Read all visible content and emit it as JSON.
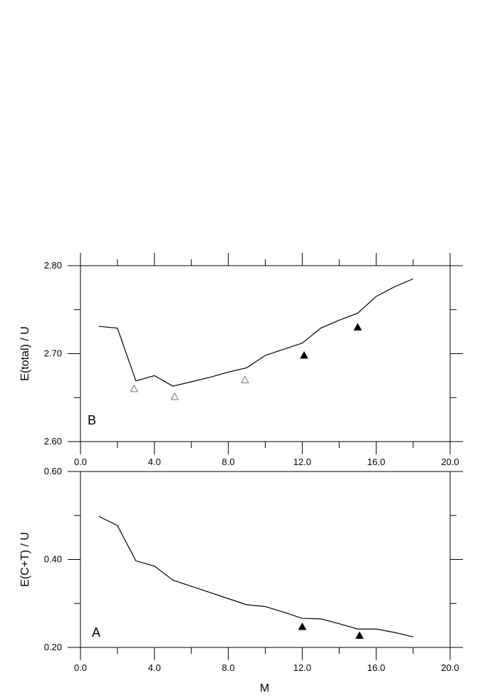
{
  "chart_data": [
    {
      "type": "line",
      "panel_label": "B",
      "ylabel": "E(total) / U",
      "xlabel": "",
      "xlim": [
        0,
        20
      ],
      "ylim": [
        2.6,
        2.8
      ],
      "x_ticks": [
        "0.0",
        "4.0",
        "8.0",
        "12.0",
        "16.0",
        "20.0"
      ],
      "y_ticks": [
        "2.60",
        "2.70",
        "2.80"
      ],
      "series": [
        {
          "x": [
            1,
            2,
            3,
            4,
            5,
            6,
            7,
            8,
            9,
            10,
            11,
            12,
            13,
            14,
            15,
            16,
            17,
            18
          ],
          "values": [
            2.731,
            2.729,
            2.669,
            2.675,
            2.663,
            2.668,
            2.673,
            2.679,
            2.684,
            2.698,
            2.705,
            2.712,
            2.729,
            2.738,
            2.746,
            2.765,
            2.776,
            2.785
          ]
        }
      ],
      "markers": [
        {
          "x": 2.9,
          "y": 2.66,
          "style": "open-triangle"
        },
        {
          "x": 5.1,
          "y": 2.651,
          "style": "open-triangle"
        },
        {
          "x": 8.9,
          "y": 2.67,
          "style": "open-triangle"
        },
        {
          "x": 12.1,
          "y": 2.698,
          "style": "filled-triangle"
        },
        {
          "x": 15.0,
          "y": 2.73,
          "style": "filled-triangle"
        }
      ]
    },
    {
      "type": "line",
      "panel_label": "A",
      "ylabel": "E(C+T) / U",
      "xlabel": "M",
      "xlim": [
        0,
        20
      ],
      "ylim": [
        0.2,
        0.6
      ],
      "x_ticks": [
        "0.0",
        "4.0",
        "8.0",
        "12.0",
        "16.0",
        "20.0"
      ],
      "y_ticks": [
        "0.20",
        "0.40",
        "0.60"
      ],
      "series": [
        {
          "x": [
            1,
            2,
            3,
            4,
            5,
            6,
            7,
            8,
            9,
            10,
            11,
            12,
            13,
            14,
            15,
            16,
            17,
            18
          ],
          "values": [
            0.498,
            0.477,
            0.397,
            0.385,
            0.353,
            0.339,
            0.325,
            0.311,
            0.297,
            0.293,
            0.28,
            0.266,
            0.265,
            0.254,
            0.242,
            0.242,
            0.234,
            0.224
          ]
        }
      ],
      "markers": [
        {
          "x": 12.0,
          "y": 0.247,
          "style": "filled-triangle"
        },
        {
          "x": 15.1,
          "y": 0.227,
          "style": "filled-triangle"
        }
      ]
    }
  ]
}
